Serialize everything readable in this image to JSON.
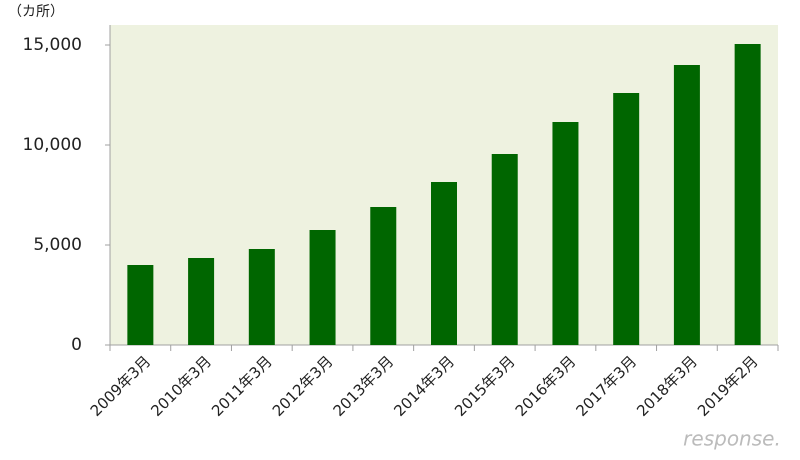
{
  "chart_data": {
    "type": "bar",
    "unit_label": "（カ所）",
    "categories": [
      "2009年3月",
      "2010年3月",
      "2011年3月",
      "2012年3月",
      "2013年3月",
      "2014年3月",
      "2015年3月",
      "2016年3月",
      "2017年3月",
      "2018年3月",
      "2019年2月"
    ],
    "values": [
      4000,
      4350,
      4800,
      5750,
      6900,
      8150,
      9550,
      11150,
      12600,
      14000,
      15050
    ],
    "color": "#006600",
    "plot_background": "#eef2e0",
    "ylim": [
      0,
      16000
    ],
    "yticks": [
      0,
      {
        "value": 5000,
        "label": "5,000"
      },
      {
        "value": 10000,
        "label": "10,000"
      },
      {
        "value": 15000,
        "label": "15,000"
      }
    ],
    "grid": false,
    "watermark": "response."
  }
}
